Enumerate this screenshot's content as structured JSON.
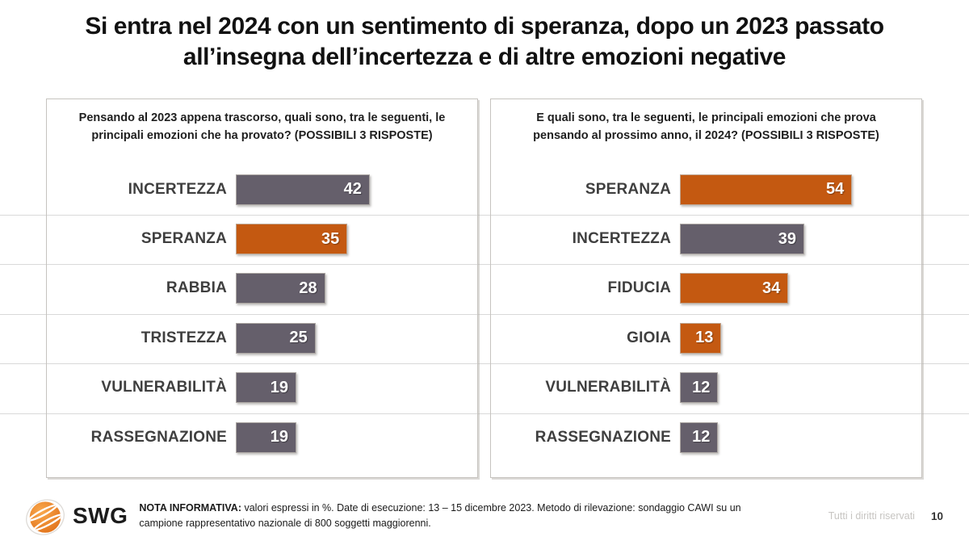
{
  "slide": {
    "title": "Si entra nel 2024 con un sentimento di speranza, dopo un 2023 passato all’insegna dell’incertezza e di altre emozioni negative",
    "logo_text": "SWG",
    "note_label": "NOTA INFORMATIVA:",
    "note_text": " valori espressi in %. Date di esecuzione: 13 – 15 dicembre 2023. Metodo di rilevazione: sondaggio CAWI su un campione rappresentativo nazionale di 800 soggetti maggiorenni.",
    "rights": "Tutti i diritti riservati",
    "page_number": "10"
  },
  "colors": {
    "orange": "#C45911",
    "gray": "#655F6B",
    "label_text": "#3F3F3F",
    "grid_line": "#D9D9D9",
    "panel_border": "#C6C3BF",
    "muted_text": "#C7C5C2",
    "logo_orange": "#ED7D17"
  },
  "chart_data": [
    {
      "type": "bar",
      "orientation": "horizontal",
      "title": "Pensando al 2023 appena trascorso, quali sono, tra le seguenti, le principali emozioni che ha provato? (POSSIBILI 3 RISPOSTE)",
      "categories": [
        "INCERTEZZA",
        "SPERANZA",
        "RABBIA",
        "TRISTEZZA",
        "VULNERABILITÀ",
        "RASSEGNAZIONE"
      ],
      "values": [
        42,
        35,
        28,
        25,
        19,
        19
      ],
      "bar_colors": [
        "gray",
        "orange",
        "gray",
        "gray",
        "gray",
        "gray"
      ],
      "unit": "%",
      "xlim": [
        0,
        60
      ],
      "value_labels": "inside-end",
      "grid": "row-separators",
      "legend": "none"
    },
    {
      "type": "bar",
      "orientation": "horizontal",
      "title": "E quali sono, tra le seguenti, le principali emozioni che prova pensando al prossimo anno, il 2024? (POSSIBILI 3 RISPOSTE)",
      "categories": [
        "SPERANZA",
        "INCERTEZZA",
        "FIDUCIA",
        "GIOIA",
        "VULNERABILITÀ",
        "RASSEGNAZIONE"
      ],
      "values": [
        54,
        39,
        34,
        13,
        12,
        12
      ],
      "bar_colors": [
        "orange",
        "gray",
        "orange",
        "orange",
        "gray",
        "gray"
      ],
      "unit": "%",
      "xlim": [
        0,
        60
      ],
      "value_labels": "inside-end",
      "grid": "row-separators",
      "legend": "none"
    }
  ]
}
